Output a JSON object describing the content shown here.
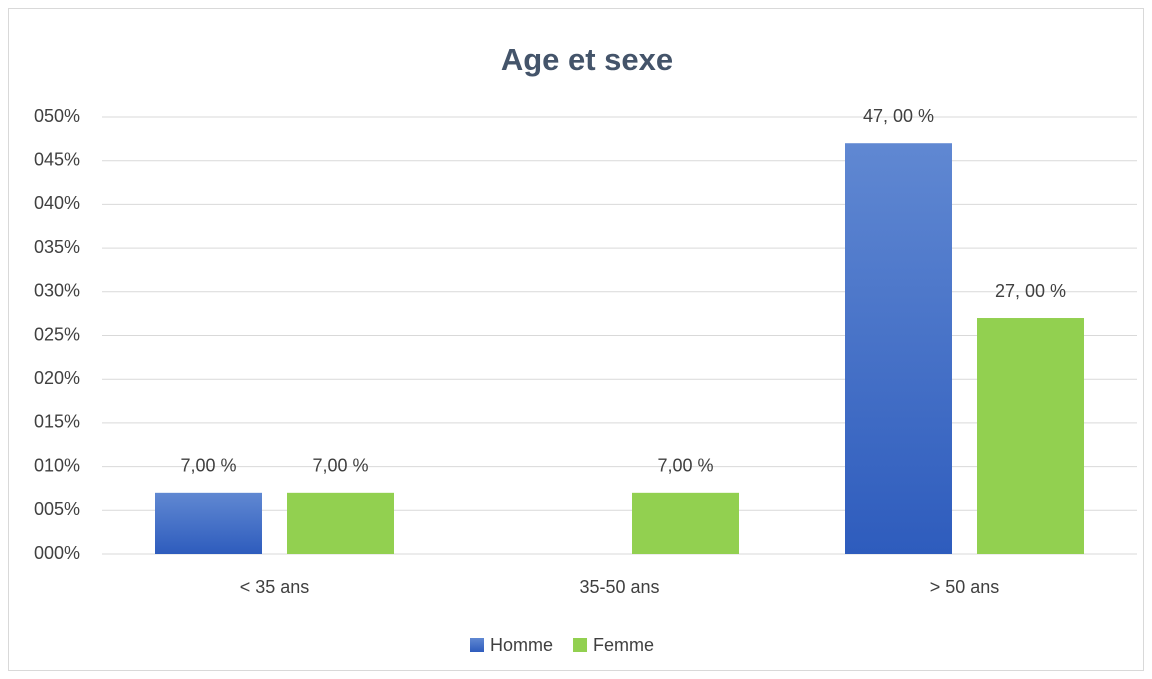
{
  "chart_data": {
    "type": "bar",
    "title": "Age et sexe",
    "categories": [
      "< 35 ans",
      "35-50 ans",
      "> 50 ans"
    ],
    "series": [
      {
        "name": "Homme",
        "color": "#4472c4",
        "values": [
          7,
          null,
          47
        ],
        "value_labels": [
          "7,00 %",
          null,
          "47, 00 %"
        ]
      },
      {
        "name": "Femme",
        "color": "#92d050",
        "values": [
          7,
          7,
          27
        ],
        "value_labels": [
          "7,00 %",
          "7,00 %",
          "27, 00 %"
        ]
      }
    ],
    "ylim": [
      0,
      50
    ],
    "yticks": [
      {
        "value": 0,
        "label": "000%"
      },
      {
        "value": 5,
        "label": "005%"
      },
      {
        "value": 10,
        "label": "010%"
      },
      {
        "value": 15,
        "label": "015%"
      },
      {
        "value": 20,
        "label": "020%"
      },
      {
        "value": 25,
        "label": "025%"
      },
      {
        "value": 30,
        "label": "030%"
      },
      {
        "value": 35,
        "label": "035%"
      },
      {
        "value": 40,
        "label": "040%"
      },
      {
        "value": 45,
        "label": "045%"
      },
      {
        "value": 50,
        "label": "050%"
      }
    ],
    "grid": true,
    "legend": "bottom"
  }
}
